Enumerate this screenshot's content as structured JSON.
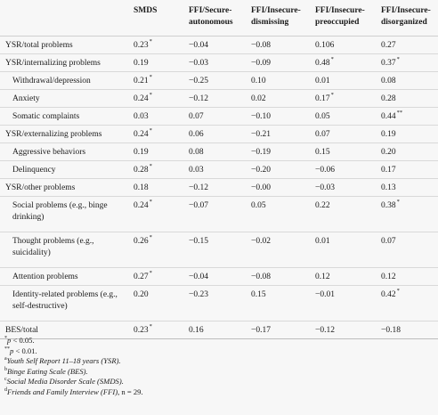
{
  "table": {
    "headers": [
      "",
      "SMDS",
      "FFI/Secure-autonomous",
      "FFI/Insecure-dismissing",
      "FFI/Insecure-preoccupied",
      "FFI/Insecure-disorganized"
    ],
    "rows": [
      {
        "label": "YSR/total problems",
        "indent": false,
        "lines": 1,
        "cells": [
          {
            "v": "0.23",
            "s": "*"
          },
          {
            "v": "−0.04",
            "s": ""
          },
          {
            "v": "−0.08",
            "s": ""
          },
          {
            "v": "0.106",
            "s": ""
          },
          {
            "v": "0.27",
            "s": ""
          }
        ]
      },
      {
        "label": "YSR/internalizing problems",
        "indent": false,
        "lines": 1,
        "cells": [
          {
            "v": "0.19",
            "s": ""
          },
          {
            "v": "−0.03",
            "s": ""
          },
          {
            "v": "−0.09",
            "s": ""
          },
          {
            "v": "0.48",
            "s": "*"
          },
          {
            "v": "0.37",
            "s": "*"
          }
        ]
      },
      {
        "label": "Withdrawal/depression",
        "indent": true,
        "lines": 1,
        "cells": [
          {
            "v": "0.21",
            "s": "*"
          },
          {
            "v": "−0.25",
            "s": ""
          },
          {
            "v": "0.10",
            "s": ""
          },
          {
            "v": "0.01",
            "s": ""
          },
          {
            "v": "0.08",
            "s": ""
          }
        ]
      },
      {
        "label": "Anxiety",
        "indent": true,
        "lines": 1,
        "cells": [
          {
            "v": "0.24",
            "s": "*"
          },
          {
            "v": "−0.12",
            "s": ""
          },
          {
            "v": "0.02",
            "s": ""
          },
          {
            "v": "0.17",
            "s": "*"
          },
          {
            "v": "0.28",
            "s": ""
          }
        ]
      },
      {
        "label": "Somatic complaints",
        "indent": true,
        "lines": 1,
        "cells": [
          {
            "v": "0.03",
            "s": ""
          },
          {
            "v": "0.07",
            "s": ""
          },
          {
            "v": "−0.10",
            "s": ""
          },
          {
            "v": "0.05",
            "s": ""
          },
          {
            "v": "0.44",
            "s": "**"
          }
        ]
      },
      {
        "label": "YSR/externalizing problems",
        "indent": false,
        "lines": 1,
        "cells": [
          {
            "v": "0.24",
            "s": "*"
          },
          {
            "v": "0.06",
            "s": ""
          },
          {
            "v": "−0.21",
            "s": ""
          },
          {
            "v": "0.07",
            "s": ""
          },
          {
            "v": "0.19",
            "s": ""
          }
        ]
      },
      {
        "label": "Aggressive behaviors",
        "indent": true,
        "lines": 1,
        "cells": [
          {
            "v": "0.19",
            "s": ""
          },
          {
            "v": "0.08",
            "s": ""
          },
          {
            "v": "−0.19",
            "s": ""
          },
          {
            "v": "0.15",
            "s": ""
          },
          {
            "v": "0.20",
            "s": ""
          }
        ]
      },
      {
        "label": "Delinquency",
        "indent": true,
        "lines": 1,
        "cells": [
          {
            "v": "0.28",
            "s": "*"
          },
          {
            "v": "0.03",
            "s": ""
          },
          {
            "v": "−0.20",
            "s": ""
          },
          {
            "v": "−0.06",
            "s": ""
          },
          {
            "v": "0.17",
            "s": ""
          }
        ]
      },
      {
        "label": "YSR/other problems",
        "indent": false,
        "lines": 1,
        "cells": [
          {
            "v": "0.18",
            "s": ""
          },
          {
            "v": "−0.12",
            "s": ""
          },
          {
            "v": "−0.00",
            "s": ""
          },
          {
            "v": "−0.03",
            "s": ""
          },
          {
            "v": "0.13",
            "s": ""
          }
        ]
      },
      {
        "label": "Social problems (e.g., binge drinking)",
        "indent": true,
        "lines": 2,
        "cells": [
          {
            "v": "0.24",
            "s": "*"
          },
          {
            "v": "−0.07",
            "s": ""
          },
          {
            "v": "0.05",
            "s": ""
          },
          {
            "v": "0.22",
            "s": ""
          },
          {
            "v": "0.38",
            "s": "*"
          }
        ]
      },
      {
        "label": "Thought problems (e.g., suicidality)",
        "indent": true,
        "lines": 2,
        "cells": [
          {
            "v": "0.26",
            "s": "*"
          },
          {
            "v": "−0.15",
            "s": ""
          },
          {
            "v": "−0.02",
            "s": ""
          },
          {
            "v": "0.01",
            "s": ""
          },
          {
            "v": "0.07",
            "s": ""
          }
        ]
      },
      {
        "label": "Attention problems",
        "indent": true,
        "lines": 1,
        "cells": [
          {
            "v": "0.27",
            "s": "*"
          },
          {
            "v": "−0.04",
            "s": ""
          },
          {
            "v": "−0.08",
            "s": ""
          },
          {
            "v": "0.12",
            "s": ""
          },
          {
            "v": "0.12",
            "s": ""
          }
        ]
      },
      {
        "label": "Identity-related problems (e.g., self-destructive)",
        "indent": true,
        "lines": 2,
        "cells": [
          {
            "v": "0.20",
            "s": ""
          },
          {
            "v": "−0.23",
            "s": ""
          },
          {
            "v": "0.15",
            "s": ""
          },
          {
            "v": "−0.01",
            "s": ""
          },
          {
            "v": "0.42",
            "s": "*"
          }
        ]
      },
      {
        "label": "BES/total",
        "indent": false,
        "lines": 1,
        "cells": [
          {
            "v": "0.23",
            "s": "*"
          },
          {
            "v": "0.16",
            "s": ""
          },
          {
            "v": "−0.17",
            "s": ""
          },
          {
            "v": "−0.12",
            "s": ""
          },
          {
            "v": "−0.18",
            "s": ""
          }
        ]
      }
    ]
  },
  "notes": [
    {
      "mark": "*",
      "italic_text": "p",
      "text": " < 0.05."
    },
    {
      "mark": "**",
      "italic_text": "p",
      "text": " < 0.01."
    },
    {
      "mark": "a",
      "italic_text": "Youth Self Report 11–18 years (YSR).",
      "text": ""
    },
    {
      "mark": "b",
      "italic_text": "Binge Eating Scale (BES).",
      "text": ""
    },
    {
      "mark": "c",
      "italic_text": "Social Media Disorder Scale (SMDS).",
      "text": ""
    },
    {
      "mark": "d",
      "italic_text": "Friends and Family Interview (FFI)",
      "text": ", n = 29."
    }
  ]
}
